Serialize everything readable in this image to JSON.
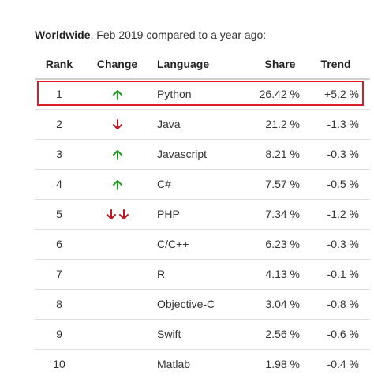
{
  "caption": {
    "bold": "Worldwide",
    "rest": ", Feb 2019 compared to a year ago:"
  },
  "header": {
    "rank": "Rank",
    "change": "Change",
    "language": "Language",
    "share": "Share",
    "trend": "Trend"
  },
  "colors": {
    "up": "#1e9a1e",
    "down": "#c0141e",
    "highlight": "#d9202a"
  },
  "rows": [
    {
      "rank": "1",
      "change": "up",
      "language": "Python",
      "share": "26.42 %",
      "trend": "+5.2 %",
      "highlighted": true
    },
    {
      "rank": "2",
      "change": "down",
      "language": "Java",
      "share": "21.2 %",
      "trend": "-1.3 %"
    },
    {
      "rank": "3",
      "change": "up",
      "language": "Javascript",
      "share": "8.21 %",
      "trend": "-0.3 %"
    },
    {
      "rank": "4",
      "change": "up",
      "language": "C#",
      "share": "7.57 %",
      "trend": "-0.5 %"
    },
    {
      "rank": "5",
      "change": "down-double",
      "language": "PHP",
      "share": "7.34 %",
      "trend": "-1.2 %"
    },
    {
      "rank": "6",
      "change": "",
      "language": "C/C++",
      "share": "6.23 %",
      "trend": "-0.3 %"
    },
    {
      "rank": "7",
      "change": "",
      "language": "R",
      "share": "4.13 %",
      "trend": "-0.1 %"
    },
    {
      "rank": "8",
      "change": "",
      "language": "Objective-C",
      "share": "3.04 %",
      "trend": "-0.8 %"
    },
    {
      "rank": "9",
      "change": "",
      "language": "Swift",
      "share": "2.56 %",
      "trend": "-0.6 %"
    },
    {
      "rank": "10",
      "change": "",
      "language": "Matlab",
      "share": "1.98 %",
      "trend": "-0.4 %"
    }
  ]
}
